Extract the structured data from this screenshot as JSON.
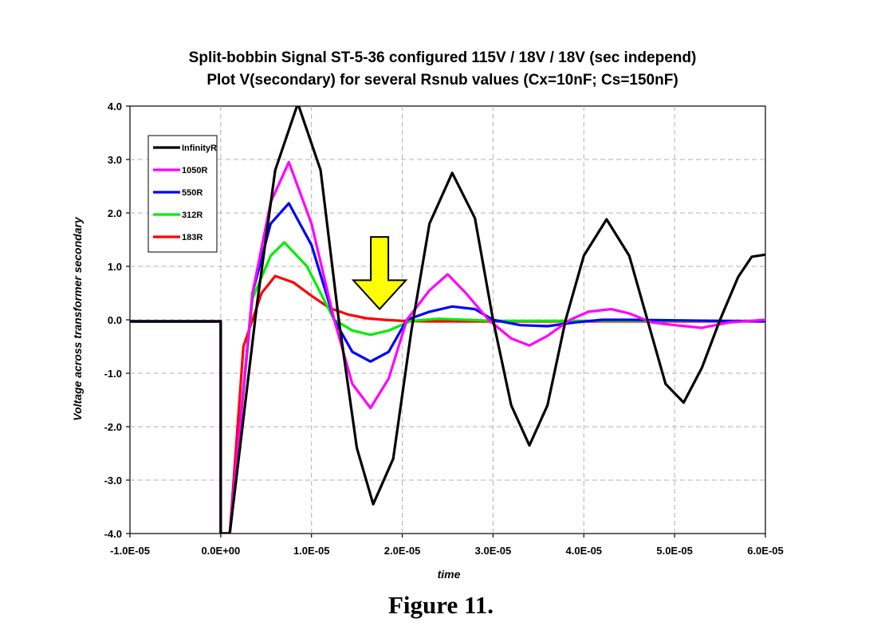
{
  "chart_data": {
    "type": "line",
    "title": "Split-bobbin Signal ST-5-36 configured 115V / 18V / 18V (sec independ)",
    "subtitle": "Plot V(secondary) for several Rsnub values (Cx=10nF; Cs=150nF)",
    "xlabel": "time",
    "ylabel": "Voltage across transformer secondary",
    "xlim": [
      -1e-05,
      6e-05
    ],
    "ylim": [
      -4.0,
      4.0
    ],
    "x_ticks": [
      -1e-05,
      0.0,
      1e-05,
      2e-05,
      3e-05,
      4e-05,
      5e-05,
      6e-05
    ],
    "x_tick_labels": [
      "-1.0E-05",
      "0.0E+00",
      "1.0E-05",
      "2.0E-05",
      "3.0E-05",
      "4.0E-05",
      "5.0E-05",
      "6.0E-05"
    ],
    "y_ticks": [
      4.0,
      3.0,
      2.0,
      1.0,
      0.0,
      -1.0,
      -2.0,
      -3.0,
      -4.0
    ],
    "y_tick_labels": [
      "4.0",
      "3.0",
      "2.0",
      "1.0",
      "0.0",
      "-1.0",
      "-2.0",
      "-3.0",
      "-4.0"
    ],
    "grid": true,
    "legend_position": "top-left",
    "annotation": {
      "type": "yellow down arrow",
      "x": 1.75e-05,
      "y_top": 1.55,
      "y_tip": 0.2,
      "color": "#ffff00"
    },
    "series": [
      {
        "name": "InfinityR",
        "color": "#000000",
        "x": [
          -1e-05,
          0.0,
          0.0,
          1e-06,
          4e-06,
          6e-06,
          8.5e-06,
          1.1e-05,
          1.3e-05,
          1.5e-05,
          1.68e-05,
          1.9e-05,
          2.1e-05,
          2.3e-05,
          2.55e-05,
          2.8e-05,
          3e-05,
          3.2e-05,
          3.4e-05,
          3.6e-05,
          3.8e-05,
          4e-05,
          4.25e-05,
          4.5e-05,
          4.7e-05,
          4.9e-05,
          5.1e-05,
          5.3e-05,
          5.5e-05,
          5.7e-05,
          5.85e-05,
          6e-05
        ],
        "y": [
          -0.03,
          -0.03,
          -4.0,
          -4.0,
          0.3,
          2.8,
          4.05,
          2.8,
          0.0,
          -2.4,
          -3.45,
          -2.6,
          -0.2,
          1.8,
          2.75,
          1.9,
          0.0,
          -1.6,
          -2.35,
          -1.6,
          0.0,
          1.2,
          1.88,
          1.2,
          0.0,
          -1.2,
          -1.55,
          -0.9,
          0.0,
          0.8,
          1.18,
          1.22
        ]
      },
      {
        "name": "1050R",
        "color": "#ff00ff",
        "x": [
          -1e-05,
          0.0,
          0.0,
          1e-06,
          3.5e-06,
          5.5e-06,
          7.5e-06,
          1e-05,
          1.25e-05,
          1.45e-05,
          1.65e-05,
          1.85e-05,
          2.05e-05,
          2.3e-05,
          2.5e-05,
          2.7e-05,
          2.95e-05,
          3.2e-05,
          3.4e-05,
          3.6e-05,
          3.85e-05,
          4.05e-05,
          4.3e-05,
          4.5e-05,
          4.75e-05,
          5e-05,
          5.3e-05,
          5.6e-05,
          6e-05
        ],
        "y": [
          -0.03,
          -0.03,
          -4.0,
          -4.0,
          0.5,
          2.2,
          2.95,
          1.8,
          0.0,
          -1.2,
          -1.65,
          -1.1,
          0.0,
          0.55,
          0.85,
          0.5,
          0.0,
          -0.35,
          -0.48,
          -0.3,
          0.0,
          0.15,
          0.2,
          0.12,
          -0.05,
          -0.1,
          -0.15,
          -0.05,
          0.0
        ]
      },
      {
        "name": "550R",
        "color": "#0000ff",
        "x": [
          -1e-05,
          0.0,
          0.0,
          1e-06,
          3.5e-06,
          5.5e-06,
          7.5e-06,
          1e-05,
          1.25e-05,
          1.45e-05,
          1.65e-05,
          1.85e-05,
          2.05e-05,
          2.3e-05,
          2.55e-05,
          2.8e-05,
          3e-05,
          3.3e-05,
          3.6e-05,
          3.9e-05,
          4.2e-05,
          4.5e-05,
          6e-05
        ],
        "y": [
          -0.03,
          -0.03,
          -4.0,
          -4.0,
          0.5,
          1.8,
          2.18,
          1.4,
          0.0,
          -0.6,
          -0.78,
          -0.6,
          0.0,
          0.15,
          0.25,
          0.2,
          0.0,
          -0.1,
          -0.12,
          -0.05,
          0.0,
          0.0,
          -0.03
        ]
      },
      {
        "name": "312R",
        "color": "#00ee00",
        "x": [
          -1e-05,
          0.0,
          0.0,
          1e-06,
          3.5e-06,
          5.5e-06,
          7e-06,
          9.5e-06,
          1.25e-05,
          1.45e-05,
          1.65e-05,
          1.85e-05,
          2.1e-05,
          2.4e-05,
          2.7e-05,
          3e-05,
          6e-05
        ],
        "y": [
          -0.03,
          -0.03,
          -4.0,
          -4.0,
          0.4,
          1.2,
          1.45,
          1.0,
          0.0,
          -0.2,
          -0.28,
          -0.2,
          -0.02,
          0.02,
          0.0,
          -0.02,
          -0.02
        ]
      },
      {
        "name": "183R",
        "color": "#ff0000",
        "x": [
          -1e-05,
          0.0,
          0.0,
          1e-06,
          2.5e-06,
          4.5e-06,
          6e-06,
          8e-06,
          1e-05,
          1.2e-05,
          1.4e-05,
          1.6e-05,
          1.8e-05,
          2e-05,
          2.3e-05,
          6e-05
        ],
        "y": [
          -0.03,
          -0.03,
          -4.0,
          -4.0,
          -0.5,
          0.5,
          0.82,
          0.7,
          0.45,
          0.22,
          0.1,
          0.03,
          0.0,
          -0.02,
          -0.03,
          -0.03
        ]
      }
    ]
  },
  "caption": "Figure 11."
}
